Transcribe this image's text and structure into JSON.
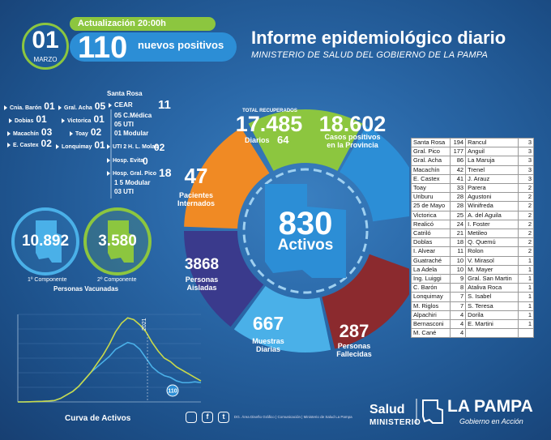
{
  "header": {
    "day": "01",
    "month": "MARZO",
    "update_label": "Actualización 20:00h",
    "new_positives_count": "110",
    "new_positives_label": "nuevos positivos",
    "title": "Informe epidemiológico diario",
    "subtitle": "MINISTERIO DE SALUD DEL GOBIERNO DE LA PAMPA"
  },
  "localities": [
    {
      "name": "Cnia. Barón",
      "num": "01"
    },
    {
      "name": "Dobias",
      "num": "01"
    },
    {
      "name": "Macachín",
      "num": "03"
    },
    {
      "name": "E. Castex",
      "num": "02"
    },
    {
      "name": "Gral. Acha",
      "num": "05"
    },
    {
      "name": "Victorica",
      "num": "01"
    },
    {
      "name": "Toay",
      "num": "02"
    },
    {
      "name": "Lonquimay",
      "num": "01"
    }
  ],
  "santa_rosa": {
    "title": "Santa Rosa",
    "cear_label": "CEAR",
    "cear_num": "11",
    "cear_lines": [
      "05 C.Médica",
      "05 UTI",
      "01 Modular"
    ],
    "uti_label": "UTI 2 H. L. Molas",
    "uti_num": "02",
    "evita_label": "Hosp. Evita",
    "evita_num": "0",
    "pico_label": "Hosp. Gral. Pico",
    "pico_num": "18",
    "pico_lines": [
      "1 5 Modular",
      "03 UTI"
    ]
  },
  "vaccines": {
    "first_num": "10.892",
    "first_label": "1º Componente",
    "second_num": "3.580",
    "second_label": "2º Componente",
    "caption": "Personas Vacunadas"
  },
  "wheel": {
    "recovered_label": "TOTAL RECUPERADOS",
    "recovered_num": "17.485",
    "daily_label": "Diarios",
    "daily_num": "64",
    "positives_num": "18.602",
    "positives_label_1": "Casos positivos",
    "positives_label_2": "en la Provincia",
    "interned_num": "47",
    "interned_label_1": "Pacientes",
    "interned_label_2": "Internados",
    "isolated_num": "3868",
    "isolated_label_1": "Personas",
    "isolated_label_2": "Aisladas",
    "samples_num": "667",
    "samples_label_1": "Muestras",
    "samples_label_2": "Diarias",
    "deceased_num": "287",
    "deceased_label_1": "Personas",
    "deceased_label_2": "Fallecidas",
    "active_num": "830",
    "active_label": "Activos",
    "colors": {
      "recovered": "#8cc63f",
      "positives": "#2c8ed6",
      "interned": "#f08a24",
      "isolated": "#3a3a8c",
      "samples": "#4ab0e8",
      "deceased": "#8b2a2e"
    }
  },
  "table_left": [
    {
      "name": "Santa Rosa",
      "n": "194"
    },
    {
      "name": "Gral. Pico",
      "n": "177"
    },
    {
      "name": "Gral. Acha",
      "n": "86"
    },
    {
      "name": "Macachín",
      "n": "42"
    },
    {
      "name": "E. Castex",
      "n": "41"
    },
    {
      "name": "Toay",
      "n": "33"
    },
    {
      "name": "Uriburu",
      "n": "28"
    },
    {
      "name": "25 de Mayo",
      "n": "28"
    },
    {
      "name": "Victorica",
      "n": "25"
    },
    {
      "name": "Realicó",
      "n": "24"
    },
    {
      "name": "Catriló",
      "n": "21"
    },
    {
      "name": "Doblas",
      "n": "18"
    },
    {
      "name": "I. Alvear",
      "n": "11"
    },
    {
      "name": "Guatraché",
      "n": "10"
    },
    {
      "name": "La Adela",
      "n": "10"
    },
    {
      "name": "Ing. Luiggi",
      "n": "9"
    },
    {
      "name": "C. Barón",
      "n": "8"
    },
    {
      "name": "Lonquimay",
      "n": "7"
    },
    {
      "name": "M. Riglos",
      "n": "7"
    },
    {
      "name": "Alpachiri",
      "n": "4"
    },
    {
      "name": "Bernasconi",
      "n": "4"
    },
    {
      "name": "M. Cané",
      "n": "4"
    }
  ],
  "table_right": [
    {
      "name": "Rancul",
      "n": "3"
    },
    {
      "name": "Anguil",
      "n": "3"
    },
    {
      "name": "La Maruja",
      "n": "3"
    },
    {
      "name": "Trenel",
      "n": "3"
    },
    {
      "name": "J. Arauz",
      "n": "3"
    },
    {
      "name": "Parera",
      "n": "2"
    },
    {
      "name": "Agustoni",
      "n": "2"
    },
    {
      "name": "Winifreda",
      "n": "2"
    },
    {
      "name": "A. del Aguila",
      "n": "2"
    },
    {
      "name": "I. Foster",
      "n": "2"
    },
    {
      "name": "Metileo",
      "n": "2"
    },
    {
      "name": "Q. Quemú",
      "n": "2"
    },
    {
      "name": "Rolon",
      "n": "2"
    },
    {
      "name": "V. Mirasol",
      "n": "1"
    },
    {
      "name": "M. Mayer",
      "n": "1"
    },
    {
      "name": "Gral. San Martin",
      "n": "1"
    },
    {
      "name": "Ataliva Roca",
      "n": "1"
    },
    {
      "name": "S. Isabel",
      "n": "1"
    },
    {
      "name": "S. Teresa",
      "n": "1"
    },
    {
      "name": "Dorila",
      "n": "1"
    },
    {
      "name": "E. Martini",
      "n": "1"
    }
  ],
  "chart_data": {
    "type": "line",
    "title": "Curva de Activos",
    "annotation_year": "2021",
    "current_value_label": "110",
    "series": [
      {
        "values": [
          0,
          0,
          1,
          2,
          3,
          5,
          8,
          20,
          40,
          60,
          90,
          130,
          170,
          200,
          230,
          260,
          300,
          320,
          340,
          330,
          300,
          250,
          200,
          170,
          150,
          140,
          120,
          110,
          110,
          115,
          110
        ]
      },
      {
        "values": [
          0,
          0,
          1,
          2,
          3,
          5,
          8,
          20,
          40,
          60,
          90,
          130,
          170,
          220,
          270,
          330,
          400,
          450,
          480,
          470,
          440,
          400,
          340,
          290,
          250,
          230,
          200,
          180,
          160,
          140,
          120
        ]
      }
    ],
    "colors": [
      "#4ab0e8",
      "#c8d94a"
    ]
  },
  "footer": {
    "social_icons": [
      "instagram-icon",
      "facebook-icon",
      "twitter-icon"
    ],
    "note": "DG. Área Diseño Gráfico | Comunicación | Ministerio de Salud La Pampa",
    "salud": "Salud",
    "ministerio": "MINISTERIO",
    "lapampa": "LA PAMPA",
    "gobierno": "Gobierno en Acción"
  }
}
